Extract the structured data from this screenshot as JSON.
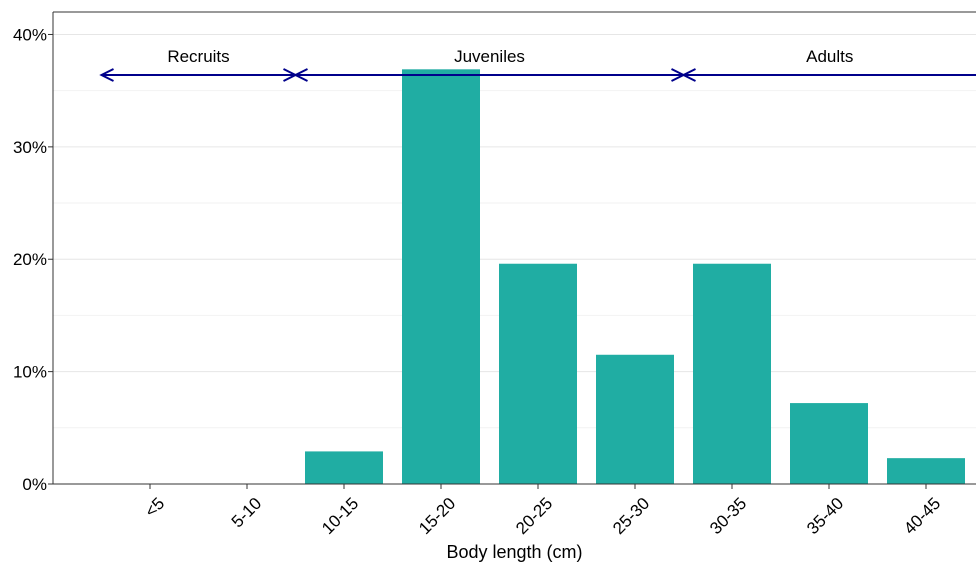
{
  "chart_data": {
    "type": "bar",
    "title": "",
    "xlabel": "Body length (cm)",
    "ylabel": "",
    "categories": [
      "<5",
      "5-10",
      "10-15",
      "15-20",
      "20-25",
      "25-30",
      "30-35",
      "35-40",
      "40-45"
    ],
    "values": [
      0,
      0,
      2.9,
      36.9,
      19.6,
      11.5,
      19.6,
      7.2,
      2.3
    ],
    "ylim": [
      0,
      42
    ],
    "yticks": [
      0,
      10,
      20,
      30,
      40
    ],
    "ytick_labels": [
      "0%",
      "10%",
      "20%",
      "30%",
      "40%"
    ],
    "grid": true,
    "bar_color": "#20ADA3",
    "arrow_color": "#00008B",
    "stages": [
      {
        "label": "Recruits",
        "from_category": 0,
        "to_category": 1
      },
      {
        "label": "Juveniles",
        "from_category": 2,
        "to_category": 5
      },
      {
        "label": "Adults",
        "from_category": 6,
        "to_category": 8
      }
    ]
  }
}
